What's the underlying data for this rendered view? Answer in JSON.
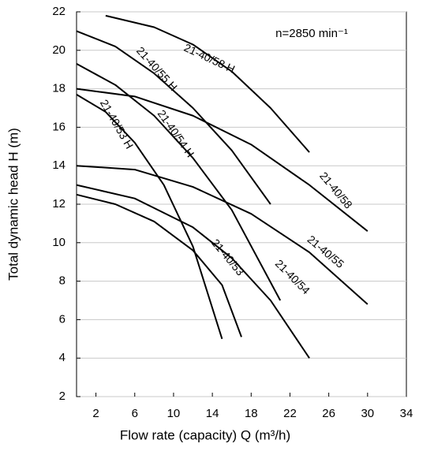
{
  "chart_data": {
    "type": "line",
    "annotation": "n=2850 min⁻¹",
    "x_label": "Flow rate (capacity) Q   (m³/h)",
    "y_label": "Total dynamic head H (m)",
    "xlim": [
      0,
      34
    ],
    "ylim": [
      2,
      22
    ],
    "xticks": [
      2,
      6,
      10,
      14,
      18,
      22,
      26,
      30,
      34
    ],
    "yticks": [
      2,
      4,
      6,
      8,
      10,
      12,
      14,
      16,
      18,
      20,
      22
    ],
    "grid": true,
    "series": [
      {
        "name": "21-40/58 H",
        "color": "#000000",
        "x": [
          3,
          8,
          12,
          16,
          20,
          24
        ],
        "values": [
          21.8,
          21.2,
          20.3,
          18.9,
          17.0,
          14.7
        ]
      },
      {
        "name": "21-40/58",
        "color": "#000000",
        "x": [
          0,
          6,
          12,
          18,
          24,
          30
        ],
        "values": [
          18.0,
          17.6,
          16.6,
          15.1,
          13.0,
          10.6
        ]
      },
      {
        "name": "21-40/55 H",
        "color": "#000000",
        "x": [
          0,
          4,
          8,
          12,
          16,
          20
        ],
        "values": [
          21.0,
          20.2,
          18.8,
          17.0,
          14.8,
          12.0
        ]
      },
      {
        "name": "21-40/55",
        "color": "#000000",
        "x": [
          0,
          6,
          12,
          18,
          24,
          30
        ],
        "values": [
          14.0,
          13.8,
          12.9,
          11.5,
          9.5,
          6.8
        ]
      },
      {
        "name": "21-40/54 H",
        "color": "#000000",
        "x": [
          0,
          4,
          8,
          12,
          16,
          21
        ],
        "values": [
          19.3,
          18.2,
          16.6,
          14.4,
          11.7,
          7.0
        ]
      },
      {
        "name": "21-40/54",
        "color": "#000000",
        "x": [
          0,
          6,
          12,
          16,
          20,
          24
        ],
        "values": [
          13.0,
          12.3,
          10.8,
          9.2,
          7.0,
          4.0
        ]
      },
      {
        "name": "21-40/53 H",
        "color": "#000000",
        "x": [
          0,
          3,
          6,
          9,
          12,
          15
        ],
        "values": [
          17.7,
          16.8,
          15.2,
          13.0,
          9.8,
          5.0
        ]
      },
      {
        "name": "21-40/53",
        "color": "#000000",
        "x": [
          0,
          4,
          8,
          12,
          15,
          17
        ],
        "values": [
          12.5,
          12.0,
          11.1,
          9.6,
          7.8,
          5.1
        ]
      }
    ]
  }
}
